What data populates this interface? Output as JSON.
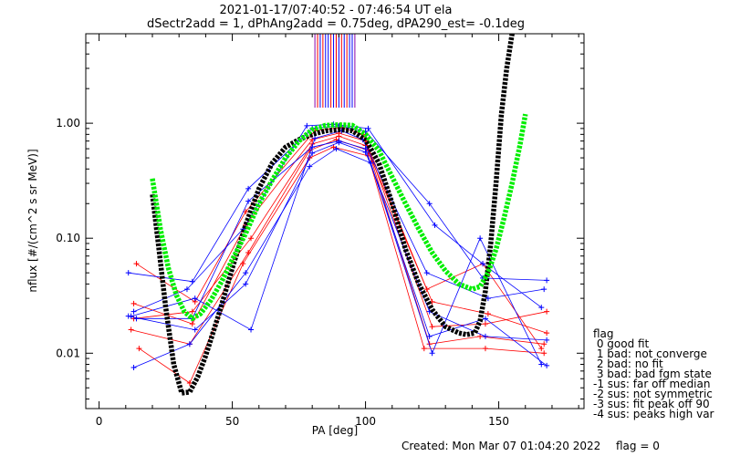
{
  "header": {
    "title_line1": "2021-01-17/07:40:52 - 07:46:54 UT ela",
    "title_line2": "dSectr2add = 1, dPhAng2add = 0.75deg, dPA290_est=  -0.1deg"
  },
  "footer": {
    "created": "Created: Mon Mar 07 01:04:20 2022",
    "flag_status": "flag = 0"
  },
  "legend": {
    "title": "flag",
    "items": [
      " 0 good fit",
      " 1 bad: not converge",
      " 2 bad: no fit",
      " 3 bad: bad fgm state",
      "-1 sus: far off median",
      "-2 sus: not symmetric",
      "-3 sus: fit peak off 90",
      "-4 sus: peaks high var"
    ]
  },
  "colors": {
    "red": "#ff0000",
    "blue": "#0000ff",
    "black": "#000000",
    "green": "#00ee00",
    "purple": "#8800aa"
  },
  "chart_data": {
    "type": "line",
    "title": "2021-01-17/07:40:52 - 07:46:54 UT ela",
    "subtitle": "dSectr2add = 1, dPhAng2add = 0.75deg, dPA290_est=  -0.1deg",
    "xlabel": "PA [deg]",
    "ylabel": "nflux [#/(cm^2 s sr MeV)]",
    "xlim": [
      -5,
      182
    ],
    "ylim": [
      0.0033,
      6.0
    ],
    "yscale": "log",
    "xticks": [
      0,
      50,
      100,
      150
    ],
    "xtick_labels": [
      "0",
      "50",
      "100",
      "150"
    ],
    "yticks": [
      0.01,
      0.1,
      1.0
    ],
    "ytick_labels": [
      "0.01",
      "0.10",
      "1.00"
    ],
    "legend_position": "right",
    "series": [
      {
        "color": "#ff0000",
        "x": [
          13,
          35,
          55,
          80,
          90,
          100,
          125,
          145,
          168
        ],
        "y": [
          0.027,
          0.018,
          0.13,
          0.72,
          0.82,
          0.7,
          0.017,
          0.018,
          0.023
        ]
      },
      {
        "color": "#ff0000",
        "x": [
          12,
          34,
          56,
          79,
          89,
          101,
          124,
          143,
          167
        ],
        "y": [
          0.016,
          0.012,
          0.075,
          0.58,
          0.72,
          0.58,
          0.012,
          0.014,
          0.012
        ]
      },
      {
        "color": "#ff0000",
        "x": [
          14,
          36,
          55,
          81,
          91,
          99,
          123,
          144,
          166
        ],
        "y": [
          0.06,
          0.028,
          0.17,
          0.86,
          0.92,
          0.8,
          0.036,
          0.06,
          0.011
        ]
      },
      {
        "color": "#ff0000",
        "x": [
          13,
          35,
          57,
          80,
          90,
          100,
          125,
          146,
          168
        ],
        "y": [
          0.02,
          0.023,
          0.1,
          0.66,
          0.77,
          0.64,
          0.028,
          0.022,
          0.015
        ]
      },
      {
        "color": "#ff0000",
        "x": [
          15,
          34,
          54,
          79,
          88,
          101,
          122,
          145,
          167
        ],
        "y": [
          0.011,
          0.0055,
          0.06,
          0.5,
          0.62,
          0.52,
          0.011,
          0.011,
          0.01
        ]
      },
      {
        "color": "#0000ff",
        "x": [
          11,
          35,
          56,
          80,
          90,
          100,
          124,
          144,
          168
        ],
        "y": [
          0.05,
          0.042,
          0.27,
          0.9,
          0.95,
          0.85,
          0.2,
          0.045,
          0.043
        ]
      },
      {
        "color": "#0000ff",
        "x": [
          13,
          34,
          55,
          79,
          89,
          102,
          125,
          143,
          166
        ],
        "y": [
          0.0075,
          0.012,
          0.05,
          0.42,
          0.6,
          0.45,
          0.01,
          0.1,
          0.008
        ]
      },
      {
        "color": "#0000ff",
        "x": [
          12,
          36,
          57,
          81,
          91,
          99,
          123,
          146,
          167
        ],
        "y": [
          0.021,
          0.03,
          0.016,
          0.74,
          0.86,
          0.72,
          0.05,
          0.03,
          0.036
        ]
      },
      {
        "color": "#0000ff",
        "x": [
          14,
          35,
          56,
          80,
          90,
          100,
          124,
          145,
          168
        ],
        "y": [
          0.02,
          0.02,
          0.21,
          0.62,
          0.7,
          0.6,
          0.014,
          0.02,
          0.0078
        ]
      },
      {
        "color": "#0000ff",
        "x": [
          13,
          33,
          54,
          78,
          88,
          101,
          126,
          144,
          166
        ],
        "y": [
          0.023,
          0.036,
          0.12,
          0.95,
          0.98,
          0.9,
          0.13,
          0.06,
          0.025
        ]
      },
      {
        "color": "#0000ff",
        "x": [
          11,
          36,
          55,
          80,
          90,
          100,
          124,
          145,
          168
        ],
        "y": [
          0.021,
          0.016,
          0.04,
          0.55,
          0.68,
          0.56,
          0.023,
          0.014,
          0.013
        ]
      }
    ],
    "fits": [
      {
        "name": "black",
        "color": "#000000",
        "x": [
          20,
          22,
          25,
          28,
          31,
          34,
          37,
          40,
          45,
          50,
          55,
          60,
          65,
          70,
          75,
          80,
          85,
          90,
          95,
          100,
          105,
          110,
          115,
          120,
          125,
          130,
          135,
          138,
          141,
          143,
          145,
          147,
          149,
          151,
          153,
          155
        ],
        "y": [
          0.24,
          0.1,
          0.025,
          0.008,
          0.0045,
          0.0046,
          0.0062,
          0.0095,
          0.022,
          0.055,
          0.13,
          0.27,
          0.45,
          0.62,
          0.72,
          0.8,
          0.86,
          0.88,
          0.86,
          0.72,
          0.45,
          0.2,
          0.08,
          0.04,
          0.024,
          0.017,
          0.015,
          0.0145,
          0.015,
          0.019,
          0.035,
          0.09,
          0.3,
          1.2,
          3.0,
          6.0
        ]
      },
      {
        "name": "green",
        "color": "#00ee00",
        "x": [
          20,
          23,
          26,
          29,
          32,
          35,
          38,
          42,
          46,
          50,
          55,
          60,
          65,
          70,
          75,
          80,
          85,
          90,
          95,
          100,
          105,
          110,
          115,
          120,
          125,
          130,
          135,
          140,
          143,
          146,
          149,
          152,
          155,
          158,
          160
        ],
        "y": [
          0.33,
          0.12,
          0.055,
          0.032,
          0.023,
          0.02,
          0.022,
          0.029,
          0.042,
          0.065,
          0.11,
          0.2,
          0.32,
          0.5,
          0.7,
          0.88,
          0.96,
          0.97,
          0.96,
          0.8,
          0.58,
          0.34,
          0.2,
          0.12,
          0.075,
          0.052,
          0.04,
          0.036,
          0.038,
          0.05,
          0.08,
          0.15,
          0.3,
          0.65,
          1.2
        ]
      }
    ],
    "peak_markers": {
      "red": [
        82,
        84,
        87,
        89,
        91,
        93
      ],
      "blue": [
        83,
        85,
        86,
        88,
        90,
        92,
        94,
        95
      ],
      "purple": [
        81,
        89,
        96
      ]
    }
  }
}
